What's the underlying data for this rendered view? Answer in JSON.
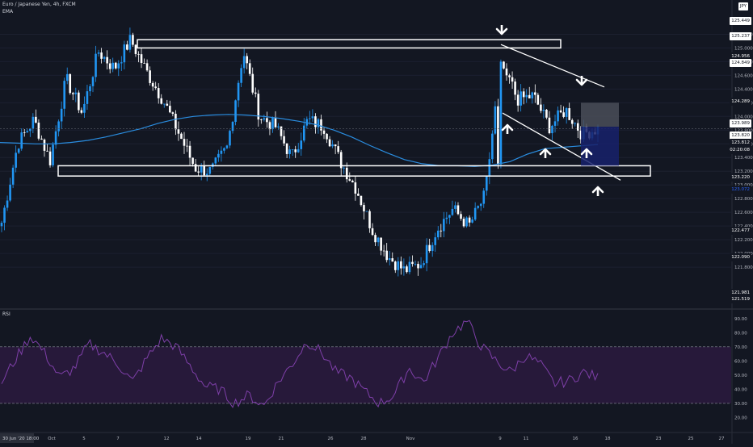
{
  "header": {
    "symbol_line": "Euro / Japanese Yen, 4h, FXCM",
    "indicator_main": "EMA",
    "indicator_rsi": "RSI",
    "currency_badge": "JPY"
  },
  "price_tags": [
    {
      "text": "125.449",
      "bg": "#ffffff",
      "fg": "#131722"
    },
    {
      "text": "125.237",
      "bg": "#ffffff",
      "fg": "#131722"
    },
    {
      "text": "124.956",
      "bg": "#131722",
      "fg": "#ffffff"
    },
    {
      "text": "124.849",
      "bg": "#ffffff",
      "fg": "#131722"
    },
    {
      "text": "124.289",
      "bg": "#131722",
      "fg": "#ffffff"
    },
    {
      "text": "123.989",
      "bg": "#ffffff",
      "fg": "#131722"
    },
    {
      "text": "123.820",
      "bg": "#ffffff",
      "fg": "#131722"
    },
    {
      "text": "123.220",
      "bg": "#131722",
      "fg": "#ffffff"
    },
    {
      "text": "123.072",
      "bg": "#131722",
      "fg": "#2962ff"
    },
    {
      "text": "122.477",
      "bg": "#131722",
      "fg": "#ffffff"
    },
    {
      "text": "122.090",
      "bg": "#131722",
      "fg": "#ffffff"
    }
  ],
  "countdown": "02:20:08",
  "last_price_small": "123.812",
  "axis_extra_labels": [
    "121.981",
    "121.519"
  ],
  "colors": {
    "bg": "#131722",
    "grid": "#1c2030",
    "text": "#b2b5be",
    "up": "#2196f3",
    "down": "#ffffff",
    "ema": "#2a8de0",
    "rsi_line": "#7e3fa8",
    "rsi_band": "#2a1a3d",
    "rsi_level": "#8a8e99",
    "annotation": "#ffffff",
    "short_target": "#18216b",
    "short_stop": "#4a4e58"
  },
  "chart_data": [
    {
      "type": "candlestick",
      "title": "Euro / Japanese Yen, 4h, FXCM",
      "xlabel": "",
      "ylabel": "",
      "ylim": [
        121.2,
        125.7
      ],
      "yticks": [
        121.8,
        122.0,
        122.2,
        122.4,
        122.6,
        122.8,
        123.0,
        123.2,
        123.4,
        123.6,
        123.8,
        124.0,
        124.2,
        124.4,
        124.6,
        124.8,
        125.0,
        125.2
      ],
      "xticks": [
        "Oct",
        "5",
        "7",
        "12",
        "14",
        "19",
        "21",
        "26",
        "28",
        "Nov",
        "9",
        "11",
        "16",
        "18",
        "23",
        "25",
        "27"
      ],
      "x_range_label": "30 Jun '20  18:00",
      "ema_series_name": "EMA",
      "ema": [
        123.62,
        123.61,
        123.6,
        123.6,
        123.62,
        123.65,
        123.7,
        123.76,
        123.82,
        123.9,
        123.96,
        124.0,
        124.02,
        124.03,
        124.02,
        124.0,
        123.97,
        123.93,
        123.88,
        123.8,
        123.7,
        123.58,
        123.47,
        123.37,
        123.31,
        123.28,
        123.28,
        123.27,
        123.29,
        123.34,
        123.45,
        123.53,
        123.55,
        123.57,
        123.59
      ],
      "close_path": [
        122.45,
        123.6,
        123.95,
        123.35,
        124.55,
        124.05,
        124.95,
        124.7,
        125.12,
        124.65,
        124.25,
        123.75,
        123.25,
        123.2,
        123.55,
        124.95,
        124.0,
        123.85,
        123.4,
        123.95,
        123.85,
        123.35,
        122.95,
        122.35,
        121.95,
        121.75,
        121.85,
        122.35,
        122.65,
        122.4,
        122.85,
        124.85,
        124.25,
        124.3,
        123.85,
        124.1,
        123.75,
        123.82
      ],
      "ohlc_count": 210,
      "series": [
        {
          "name": "RSI",
          "ylim": [
            10,
            95
          ],
          "levels": [
            30,
            70
          ],
          "yticks": [
            20,
            30,
            40,
            50,
            60,
            70,
            80,
            90
          ],
          "values": [
            45,
            62,
            78,
            65,
            48,
            55,
            72,
            66,
            58,
            45,
            62,
            76,
            70,
            56,
            42,
            40,
            30,
            36,
            28,
            45,
            58,
            74,
            66,
            52,
            48,
            38,
            30,
            36,
            55,
            45,
            62,
            80,
            88,
            70,
            60,
            52,
            64,
            58,
            44,
            46,
            52,
            48
          ]
        }
      ],
      "annotations": {
        "resistance_zone": [
          125.0,
          125.12
        ],
        "support_zone": [
          123.13,
          123.28
        ],
        "descending_channel": "lines from Nov 9 high to near 18",
        "arrows": [
          "down at Nov 9 high",
          "down at upper channel",
          "up x3 at lower channel",
          "up at support"
        ],
        "short_position": {
          "stop": [
            123.85,
            124.2
          ],
          "target": [
            123.28,
            123.85
          ]
        }
      }
    }
  ]
}
